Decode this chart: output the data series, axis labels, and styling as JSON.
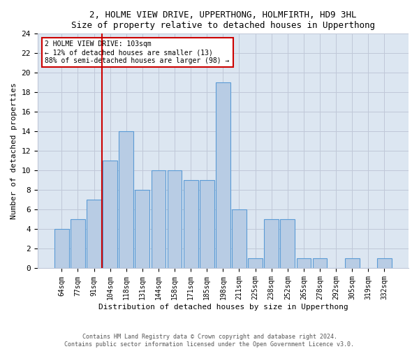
{
  "title": "2, HOLME VIEW DRIVE, UPPERTHONG, HOLMFIRTH, HD9 3HL",
  "subtitle": "Size of property relative to detached houses in Upperthong",
  "xlabel": "Distribution of detached houses by size in Upperthong",
  "ylabel": "Number of detached properties",
  "categories": [
    "64sqm",
    "77sqm",
    "91sqm",
    "104sqm",
    "118sqm",
    "131sqm",
    "144sqm",
    "158sqm",
    "171sqm",
    "185sqm",
    "198sqm",
    "211sqm",
    "225sqm",
    "238sqm",
    "252sqm",
    "265sqm",
    "278sqm",
    "292sqm",
    "305sqm",
    "319sqm",
    "332sqm"
  ],
  "values": [
    4,
    5,
    7,
    11,
    14,
    8,
    10,
    10,
    9,
    9,
    19,
    6,
    1,
    5,
    5,
    1,
    1,
    0,
    1,
    0,
    1
  ],
  "bar_color": "#b8cce4",
  "bar_edgecolor": "#5b9bd5",
  "vline_x_index": 3,
  "vline_color": "#cc0000",
  "annotation_text": "2 HOLME VIEW DRIVE: 103sqm\n← 12% of detached houses are smaller (13)\n88% of semi-detached houses are larger (98) →",
  "annotation_box_edgecolor": "#cc0000",
  "annotation_box_facecolor": "#ffffff",
  "ylim": [
    0,
    24
  ],
  "yticks": [
    0,
    2,
    4,
    6,
    8,
    10,
    12,
    14,
    16,
    18,
    20,
    22,
    24
  ],
  "footer_line1": "Contains HM Land Registry data © Crown copyright and database right 2024.",
  "footer_line2": "Contains public sector information licensed under the Open Government Licence v3.0.",
  "background_color": "#dce6f1",
  "plot_background": "#ffffff",
  "grid_color": "#c0c8d8"
}
